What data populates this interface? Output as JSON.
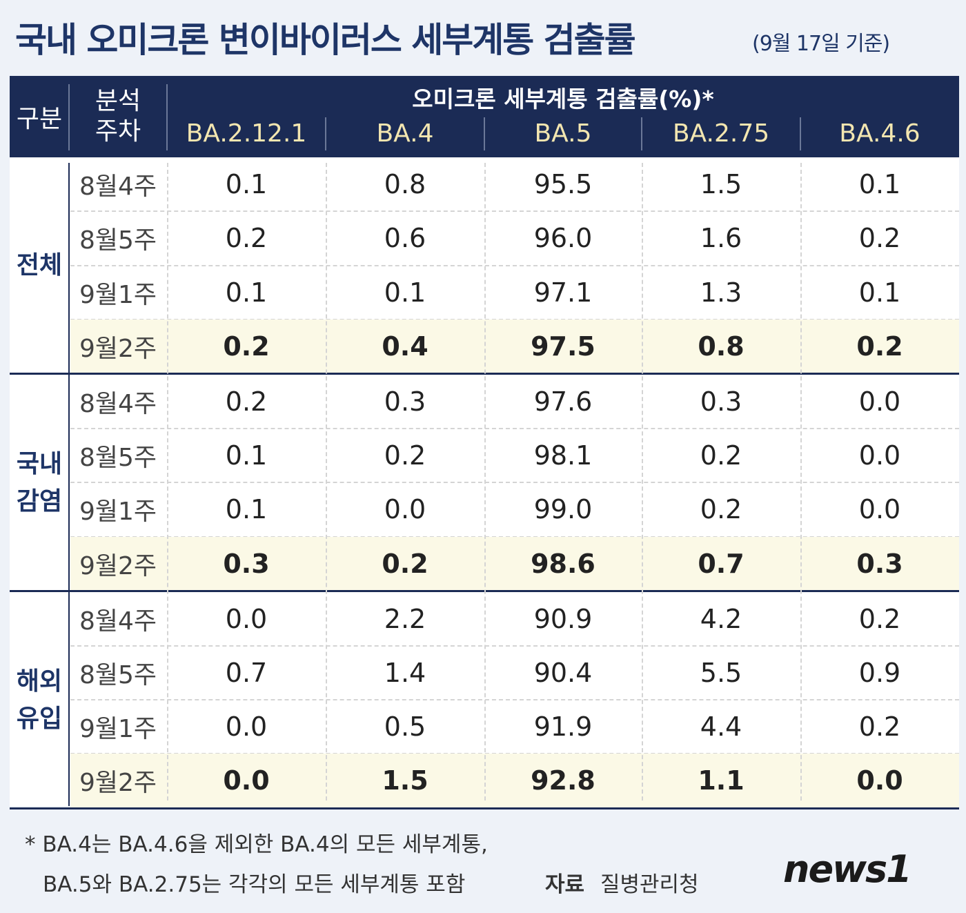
{
  "title": "국내 오미크론 변이바이러스 세부계통 검출률",
  "subtitle": "(9월 17일 기준)",
  "table": {
    "group_header": "구분",
    "week_header": [
      "분석",
      "주차"
    ],
    "value_header": "오미크론 세부계통 검출률(%)*",
    "variants": [
      "BA.2.12.1",
      "BA.4",
      "BA.5",
      "BA.2.75",
      "BA.4.6"
    ],
    "groups": [
      {
        "label": [
          "전체"
        ],
        "rows": [
          {
            "week": "8월4주",
            "values": [
              "0.1",
              "0.8",
              "95.5",
              "1.5",
              "0.1"
            ]
          },
          {
            "week": "8월5주",
            "values": [
              "0.2",
              "0.6",
              "96.0",
              "1.6",
              "0.2"
            ]
          },
          {
            "week": "9월1주",
            "values": [
              "0.1",
              "0.1",
              "97.1",
              "1.3",
              "0.1"
            ]
          },
          {
            "week": "9월2주",
            "values": [
              "0.2",
              "0.4",
              "97.5",
              "0.8",
              "0.2"
            ]
          }
        ]
      },
      {
        "label": [
          "국내",
          "감염"
        ],
        "rows": [
          {
            "week": "8월4주",
            "values": [
              "0.2",
              "0.3",
              "97.6",
              "0.3",
              "0.0"
            ]
          },
          {
            "week": "8월5주",
            "values": [
              "0.1",
              "0.2",
              "98.1",
              "0.2",
              "0.0"
            ]
          },
          {
            "week": "9월1주",
            "values": [
              "0.1",
              "0.0",
              "99.0",
              "0.2",
              "0.0"
            ]
          },
          {
            "week": "9월2주",
            "values": [
              "0.3",
              "0.2",
              "98.6",
              "0.7",
              "0.3"
            ]
          }
        ]
      },
      {
        "label": [
          "해외",
          "유입"
        ],
        "rows": [
          {
            "week": "8월4주",
            "values": [
              "0.0",
              "2.2",
              "90.9",
              "4.2",
              "0.2"
            ]
          },
          {
            "week": "8월5주",
            "values": [
              "0.7",
              "1.4",
              "90.4",
              "5.5",
              "0.9"
            ]
          },
          {
            "week": "9월1주",
            "values": [
              "0.0",
              "0.5",
              "91.9",
              "4.4",
              "0.2"
            ]
          },
          {
            "week": "9월2주",
            "values": [
              "0.0",
              "1.5",
              "92.8",
              "1.1",
              "0.0"
            ]
          }
        ]
      }
    ]
  },
  "footnote": [
    "* BA.4는 BA.4.6을 제외한 BA.4의 모든 세부계통,",
    "BA.5와 BA.2.75는 각각의 모든 세부계통 포함"
  ],
  "source_label": "자료",
  "source": "질병관리청",
  "logo": "news1"
}
